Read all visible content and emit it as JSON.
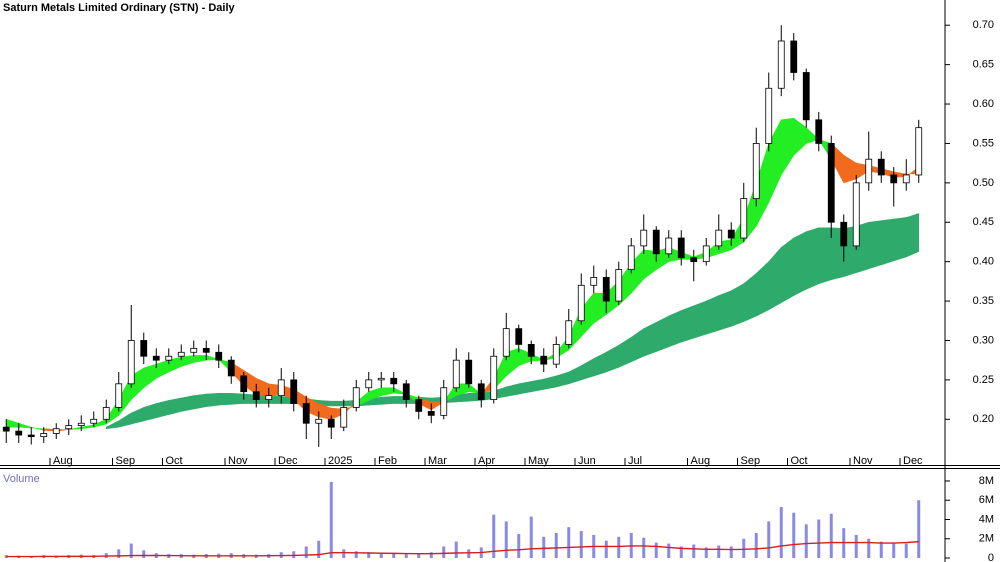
{
  "chart_data": [
    {
      "type": "candlestick",
      "title": "Saturn Metals Limited Ordinary (STN) - Daily",
      "categories": [
        null,
        null,
        null,
        null,
        "Aug",
        null,
        null,
        null,
        null,
        "Sep",
        null,
        null,
        null,
        "Oct",
        null,
        null,
        null,
        null,
        "Nov",
        null,
        null,
        null,
        "Dec",
        null,
        null,
        null,
        "2025",
        null,
        null,
        null,
        "Feb",
        null,
        null,
        null,
        "Mar",
        null,
        null,
        null,
        "Apr",
        null,
        null,
        null,
        "May",
        null,
        null,
        null,
        "Jun",
        null,
        null,
        null,
        "Jul",
        null,
        null,
        null,
        null,
        "Aug",
        null,
        null,
        null,
        "Sep",
        null,
        null,
        null,
        "Oct",
        null,
        null,
        null,
        null,
        "Nov",
        null,
        null,
        null,
        "Dec",
        null
      ],
      "open": [
        0.19,
        0.185,
        0.18,
        0.178,
        0.182,
        0.188,
        0.192,
        0.195,
        0.2,
        0.215,
        0.245,
        0.3,
        0.28,
        0.275,
        0.28,
        0.285,
        0.29,
        0.285,
        0.275,
        0.255,
        0.235,
        0.225,
        0.23,
        0.25,
        0.22,
        0.195,
        0.2,
        0.19,
        0.215,
        0.24,
        0.25,
        0.252,
        0.245,
        0.225,
        0.21,
        0.205,
        0.24,
        0.275,
        0.245,
        0.225,
        0.28,
        0.315,
        0.295,
        0.28,
        0.27,
        0.295,
        0.325,
        0.37,
        0.38,
        0.35,
        0.39,
        0.42,
        0.44,
        0.41,
        0.43,
        0.405,
        0.4,
        0.42,
        0.44,
        0.43,
        0.48,
        0.55,
        0.62,
        0.68,
        0.64,
        0.58,
        0.55,
        0.45,
        0.42,
        0.5,
        0.53,
        0.51,
        0.5,
        0.51
      ],
      "high": [
        0.2,
        0.195,
        0.19,
        0.19,
        0.195,
        0.2,
        0.205,
        0.21,
        0.225,
        0.26,
        0.345,
        0.31,
        0.29,
        0.29,
        0.295,
        0.3,
        0.3,
        0.295,
        0.28,
        0.26,
        0.245,
        0.24,
        0.265,
        0.26,
        0.23,
        0.21,
        0.205,
        0.225,
        0.25,
        0.26,
        0.26,
        0.26,
        0.25,
        0.23,
        0.22,
        0.25,
        0.29,
        0.285,
        0.25,
        0.29,
        0.335,
        0.32,
        0.3,
        0.29,
        0.305,
        0.34,
        0.385,
        0.395,
        0.39,
        0.4,
        0.43,
        0.46,
        0.445,
        0.44,
        0.44,
        0.415,
        0.43,
        0.46,
        0.45,
        0.5,
        0.57,
        0.64,
        0.7,
        0.69,
        0.645,
        0.59,
        0.56,
        0.46,
        0.51,
        0.565,
        0.54,
        0.52,
        0.53,
        0.58
      ],
      "low": [
        0.17,
        0.17,
        0.168,
        0.17,
        0.175,
        0.18,
        0.185,
        0.19,
        0.195,
        0.21,
        0.24,
        0.27,
        0.265,
        0.27,
        0.275,
        0.28,
        0.275,
        0.265,
        0.245,
        0.225,
        0.215,
        0.215,
        0.22,
        0.21,
        0.175,
        0.165,
        0.175,
        0.185,
        0.21,
        0.235,
        0.24,
        0.235,
        0.215,
        0.2,
        0.195,
        0.2,
        0.235,
        0.24,
        0.215,
        0.22,
        0.275,
        0.285,
        0.27,
        0.26,
        0.265,
        0.29,
        0.32,
        0.36,
        0.335,
        0.345,
        0.385,
        0.41,
        0.4,
        0.405,
        0.395,
        0.375,
        0.395,
        0.415,
        0.42,
        0.425,
        0.47,
        0.54,
        0.61,
        0.63,
        0.57,
        0.54,
        0.43,
        0.4,
        0.415,
        0.49,
        0.5,
        0.47,
        0.49,
        0.5
      ],
      "close": [
        0.185,
        0.18,
        0.178,
        0.182,
        0.188,
        0.192,
        0.195,
        0.2,
        0.215,
        0.245,
        0.3,
        0.28,
        0.275,
        0.28,
        0.285,
        0.29,
        0.285,
        0.275,
        0.255,
        0.235,
        0.225,
        0.23,
        0.25,
        0.22,
        0.195,
        0.2,
        0.19,
        0.215,
        0.24,
        0.25,
        0.252,
        0.245,
        0.225,
        0.21,
        0.205,
        0.24,
        0.275,
        0.245,
        0.225,
        0.28,
        0.315,
        0.295,
        0.28,
        0.27,
        0.295,
        0.325,
        0.37,
        0.38,
        0.35,
        0.39,
        0.42,
        0.44,
        0.41,
        0.43,
        0.405,
        0.4,
        0.42,
        0.44,
        0.43,
        0.48,
        0.55,
        0.62,
        0.68,
        0.64,
        0.58,
        0.55,
        0.45,
        0.42,
        0.5,
        0.53,
        0.51,
        0.5,
        0.51,
        0.57
      ],
      "bands": [
        {
          "colors": [
            "#2eaa6a"
          ],
          "fast": [
            null,
            null,
            null,
            null,
            null,
            null,
            null,
            null,
            0.19,
            0.198,
            0.208,
            0.215,
            0.22,
            0.224,
            0.227,
            0.23,
            0.232,
            0.233,
            0.233,
            0.232,
            0.231,
            0.23,
            0.229,
            0.228,
            0.226,
            0.224,
            0.223,
            0.223,
            0.224,
            0.226,
            0.228,
            0.229,
            0.229,
            0.228,
            0.227,
            0.228,
            0.231,
            0.233,
            0.233,
            0.236,
            0.241,
            0.245,
            0.248,
            0.251,
            0.255,
            0.26,
            0.268,
            0.277,
            0.285,
            0.294,
            0.304,
            0.315,
            0.323,
            0.331,
            0.338,
            0.344,
            0.35,
            0.357,
            0.363,
            0.372,
            0.385,
            0.4,
            0.418,
            0.43,
            0.438,
            0.443,
            0.443,
            0.442,
            0.445,
            0.45,
            0.452,
            0.454,
            0.456,
            0.461
          ],
          "slow": [
            null,
            null,
            null,
            null,
            null,
            null,
            null,
            null,
            0.188,
            0.19,
            0.194,
            0.198,
            0.202,
            0.206,
            0.21,
            0.213,
            0.216,
            0.218,
            0.219,
            0.22,
            0.22,
            0.22,
            0.22,
            0.22,
            0.219,
            0.218,
            0.217,
            0.217,
            0.217,
            0.218,
            0.219,
            0.22,
            0.22,
            0.22,
            0.22,
            0.221,
            0.222,
            0.223,
            0.224,
            0.226,
            0.229,
            0.232,
            0.235,
            0.238,
            0.241,
            0.245,
            0.25,
            0.255,
            0.26,
            0.266,
            0.273,
            0.28,
            0.286,
            0.292,
            0.298,
            0.303,
            0.308,
            0.313,
            0.318,
            0.324,
            0.331,
            0.339,
            0.348,
            0.357,
            0.365,
            0.372,
            0.377,
            0.381,
            0.386,
            0.391,
            0.396,
            0.401,
            0.406,
            0.413
          ]
        },
        {
          "colors": [
            "#22ee22",
            "#f26a1c"
          ],
          "fast": [
            0.2,
            0.195,
            0.19,
            0.186,
            0.185,
            0.187,
            0.19,
            0.193,
            0.2,
            0.225,
            0.255,
            0.265,
            0.27,
            0.275,
            0.279,
            0.281,
            0.281,
            0.276,
            0.26,
            0.243,
            0.232,
            0.228,
            0.232,
            0.225,
            0.21,
            0.203,
            0.2,
            0.207,
            0.222,
            0.235,
            0.24,
            0.24,
            0.232,
            0.22,
            0.212,
            0.222,
            0.245,
            0.245,
            0.232,
            0.252,
            0.285,
            0.29,
            0.283,
            0.275,
            0.284,
            0.305,
            0.34,
            0.36,
            0.36,
            0.375,
            0.398,
            0.415,
            0.413,
            0.418,
            0.412,
            0.406,
            0.412,
            0.425,
            0.428,
            0.455,
            0.5,
            0.55,
            0.58,
            0.582,
            0.57,
            0.555,
            0.53,
            0.5,
            0.505,
            0.515,
            0.512,
            0.507,
            0.508,
            0.52
          ],
          "slow": [
            0.19,
            0.19,
            0.189,
            0.188,
            0.187,
            0.187,
            0.188,
            0.19,
            0.194,
            0.205,
            0.225,
            0.24,
            0.252,
            0.26,
            0.267,
            0.272,
            0.275,
            0.276,
            0.272,
            0.262,
            0.252,
            0.245,
            0.243,
            0.238,
            0.228,
            0.22,
            0.214,
            0.213,
            0.217,
            0.224,
            0.23,
            0.233,
            0.232,
            0.227,
            0.222,
            0.222,
            0.23,
            0.235,
            0.233,
            0.238,
            0.255,
            0.268,
            0.274,
            0.275,
            0.278,
            0.288,
            0.305,
            0.322,
            0.333,
            0.345,
            0.36,
            0.378,
            0.39,
            0.4,
            0.403,
            0.403,
            0.405,
            0.41,
            0.415,
            0.425,
            0.445,
            0.475,
            0.51,
            0.535,
            0.55,
            0.555,
            0.55,
            0.535,
            0.525,
            0.522,
            0.518,
            0.514,
            0.511,
            0.512
          ]
        }
      ],
      "ylim": [
        0.142,
        0.732
      ],
      "yticks": [
        {
          "value": 0.2,
          "label": "0.20"
        },
        {
          "value": 0.25,
          "label": "0.25"
        },
        {
          "value": 0.3,
          "label": "0.30"
        },
        {
          "value": 0.35,
          "label": "0.35"
        },
        {
          "value": 0.4,
          "label": "0.40"
        },
        {
          "value": 0.45,
          "label": "0.45"
        },
        {
          "value": 0.5,
          "label": "0.50"
        },
        {
          "value": 0.55,
          "label": "0.55"
        },
        {
          "value": 0.6,
          "label": "0.60"
        },
        {
          "value": 0.65,
          "label": "0.65"
        },
        {
          "value": 0.7,
          "label": "0.70"
        }
      ]
    },
    {
      "type": "bar",
      "title": "Volume",
      "color": "#8a8ae6",
      "values": [
        300000,
        250000,
        200000,
        300000,
        250000,
        300000,
        350000,
        300000,
        500000,
        900000,
        1500000,
        800000,
        500000,
        400000,
        400000,
        350000,
        400000,
        450000,
        500000,
        400000,
        350000,
        400000,
        600000,
        700000,
        1200000,
        1800000,
        7900000,
        900000,
        700000,
        600000,
        500000,
        500000,
        450000,
        500000,
        600000,
        1200000,
        1700000,
        900000,
        1100000,
        4500000,
        3800000,
        2500000,
        4300000,
        2200000,
        2600000,
        3200000,
        2800000,
        2400000,
        1800000,
        2200000,
        2600000,
        2100000,
        1600000,
        1500000,
        1200000,
        1400000,
        1100000,
        1300000,
        1200000,
        2000000,
        2600000,
        3800000,
        5300000,
        4700000,
        3500000,
        4000000,
        4600000,
        3100000,
        2400000,
        2000000,
        1700000,
        1600000,
        1500000,
        6000000
      ],
      "average": {
        "color": "#d42020",
        "values": [
          150000,
          150000,
          150000,
          160000,
          160000,
          170000,
          170000,
          180000,
          200000,
          220000,
          250000,
          260000,
          260000,
          250000,
          240000,
          230000,
          230000,
          230000,
          230000,
          230000,
          230000,
          240000,
          250000,
          270000,
          300000,
          350000,
          550000,
          550000,
          540000,
          520000,
          500000,
          480000,
          460000,
          450000,
          450000,
          480000,
          520000,
          540000,
          560000,
          700000,
          800000,
          850000,
          950000,
          1000000,
          1050000,
          1100000,
          1150000,
          1200000,
          1200000,
          1200000,
          1250000,
          1250000,
          1200000,
          1100000,
          1000000,
          950000,
          900000,
          900000,
          880000,
          900000,
          950000,
          1050000,
          1250000,
          1400000,
          1500000,
          1550000,
          1600000,
          1600000,
          1600000,
          1600000,
          1550000,
          1550000,
          1600000,
          1700000
        ]
      },
      "ylim": [
        0,
        9140000
      ],
      "yticks": [
        {
          "value": 0,
          "label": "0"
        },
        {
          "value": 2000000,
          "label": "2M"
        },
        {
          "value": 4000000,
          "label": "4M"
        },
        {
          "value": 6000000,
          "label": "6M"
        },
        {
          "value": 8000000,
          "label": "8M"
        }
      ]
    }
  ]
}
